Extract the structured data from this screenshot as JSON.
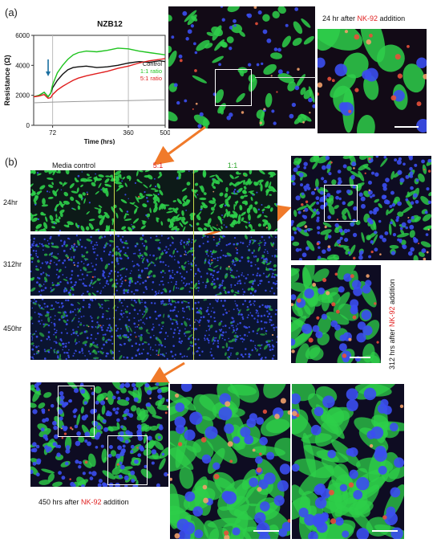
{
  "panel_a_label": "(a)",
  "panel_b_label": "(b)",
  "chart_data": {
    "type": "line",
    "title": "NZB12",
    "xlabel": "Time (hrs)",
    "ylabel": "Resistance (Ω)",
    "xlim": [
      0,
      500
    ],
    "ylim": [
      0,
      6000
    ],
    "x_ticks": [
      72,
      360,
      500
    ],
    "y_ticks": [
      0,
      2000,
      4000,
      6000
    ],
    "vertical_markers_x": [
      72,
      360
    ],
    "arrow_marker_x": 55,
    "legend_position": "right",
    "series": [
      {
        "name": "Control",
        "color": "#111111",
        "x": [
          0,
          20,
          40,
          55,
          65,
          72,
          90,
          110,
          130,
          150,
          170,
          200,
          240,
          280,
          320,
          360,
          400,
          440,
          480,
          500
        ],
        "y": [
          1900,
          2000,
          2200,
          1900,
          2150,
          2500,
          3000,
          3400,
          3700,
          3850,
          3900,
          3950,
          3850,
          3900,
          4000,
          4150,
          4250,
          4200,
          4300,
          4250
        ]
      },
      {
        "name": "1:1 ratio",
        "color": "#1fc41f",
        "x": [
          0,
          20,
          40,
          55,
          65,
          72,
          90,
          110,
          130,
          150,
          170,
          200,
          240,
          280,
          320,
          360,
          400,
          440,
          480,
          500
        ],
        "y": [
          1900,
          2000,
          2200,
          1900,
          2150,
          2700,
          3500,
          4000,
          4400,
          4700,
          4850,
          4950,
          4900,
          5000,
          5150,
          5100,
          4950,
          4850,
          4750,
          4700
        ]
      },
      {
        "name": "5:1 ratio",
        "color": "#e01e1e",
        "x": [
          0,
          20,
          40,
          55,
          65,
          72,
          90,
          110,
          130,
          150,
          170,
          200,
          240,
          280,
          320,
          360,
          400,
          440,
          480,
          500
        ],
        "y": [
          1900,
          1950,
          2050,
          1800,
          1850,
          2050,
          2350,
          2600,
          2800,
          3000,
          3150,
          3300,
          3450,
          3600,
          3800,
          3950,
          4150,
          4300,
          4400,
          4450
        ]
      },
      {
        "name": "",
        "color": "#9a9a9a",
        "x": [
          0,
          72,
          200,
          360,
          500
        ],
        "y": [
          1500,
          1550,
          1600,
          1650,
          1700
        ]
      }
    ]
  },
  "a_micro_caption": {
    "pre": "24 hr after ",
    "hl": "NK-92",
    "post": " addition"
  },
  "b_headers": {
    "media": "Media control",
    "ratio51": "5:1",
    "ratio11": "1:1"
  },
  "b_rows": [
    "24hr",
    "312hr",
    "450hr"
  ],
  "b_side_caption": {
    "pre": "312 hrs after ",
    "hl": "NK-92",
    "post": " addition"
  },
  "b_bottom_caption": {
    "pre": "450 hrs after ",
    "hl": "NK-92",
    "post": " addition"
  },
  "colors": {
    "header_51": "#e02020",
    "header_11": "#2aa52a",
    "accent_arrow": "#f07a2a"
  }
}
